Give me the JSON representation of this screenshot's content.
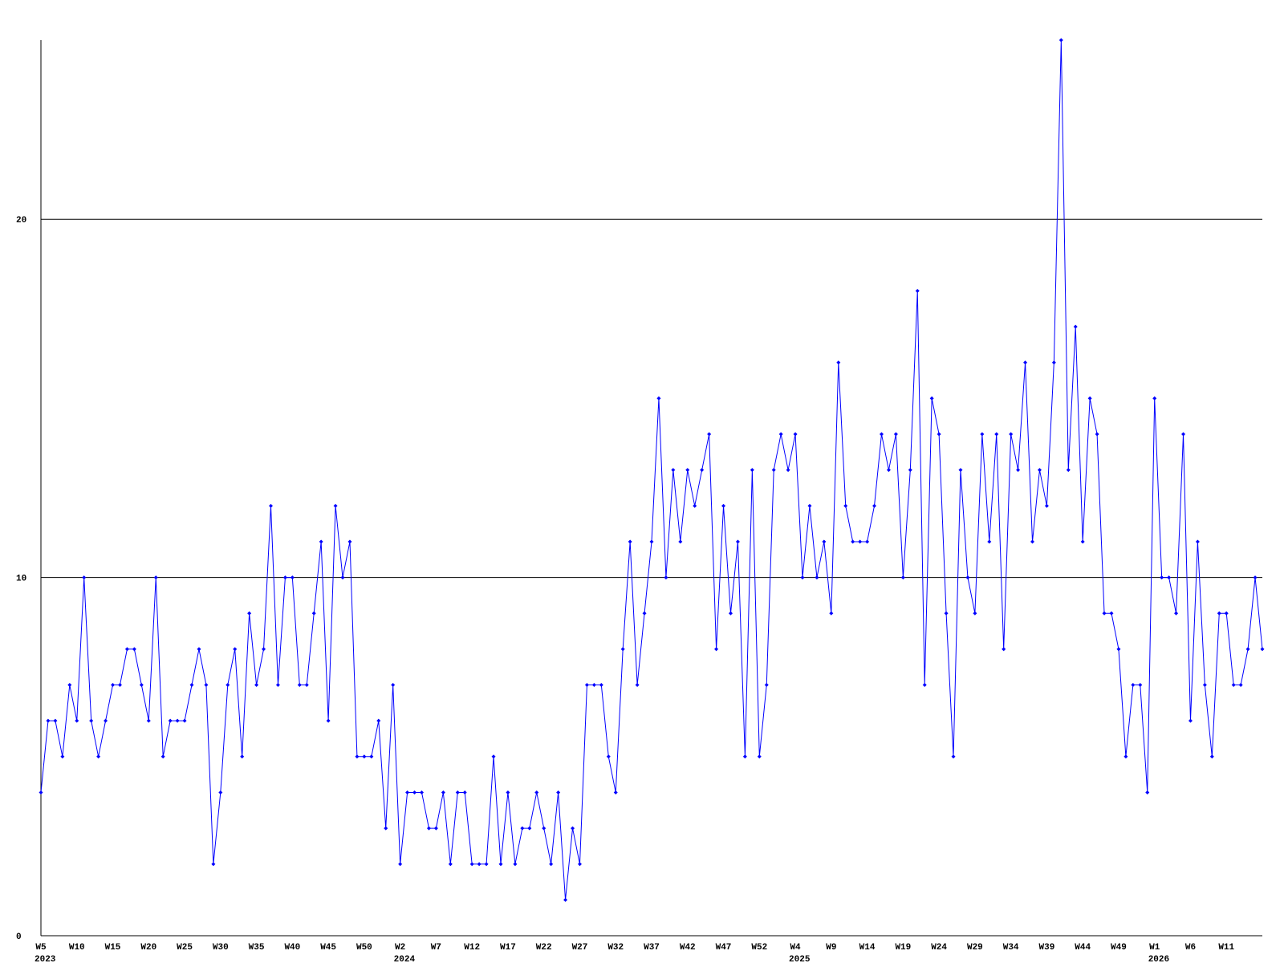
{
  "chart_data": {
    "type": "line",
    "categories": [
      "W5",
      null,
      null,
      null,
      null,
      "W10",
      null,
      null,
      null,
      null,
      "W15",
      null,
      null,
      null,
      null,
      "W20",
      null,
      null,
      null,
      null,
      "W25",
      null,
      null,
      null,
      null,
      "W30",
      null,
      null,
      null,
      null,
      "W35",
      null,
      null,
      null,
      null,
      "W40",
      null,
      null,
      null,
      null,
      "W45",
      null,
      null,
      null,
      null,
      "W50",
      null,
      null,
      null,
      null,
      "W2",
      null,
      null,
      null,
      null,
      "W7",
      null,
      null,
      null,
      null,
      "W12",
      null,
      null,
      null,
      null,
      "W17",
      null,
      null,
      null,
      null,
      "W22",
      null,
      null,
      null,
      null,
      "W27",
      null,
      null,
      null,
      null,
      "W32",
      null,
      null,
      null,
      null,
      "W37",
      null,
      null,
      null,
      null,
      "W42",
      null,
      null,
      null,
      null,
      "W47",
      null,
      null,
      null,
      null,
      "W52",
      null,
      null,
      null,
      null,
      "W4",
      null,
      null,
      null,
      null,
      "W9",
      null,
      null,
      null,
      null,
      "W14",
      null,
      null,
      null,
      null,
      "W19",
      null,
      null,
      null,
      null,
      "W24",
      null,
      null,
      null,
      null,
      "W29",
      null,
      null,
      null,
      null,
      "W34",
      null,
      null,
      null,
      null,
      "W39",
      null,
      null,
      null,
      null,
      "W44",
      null,
      null,
      null,
      null,
      "W49",
      null,
      null,
      null,
      null,
      "W1",
      null,
      null,
      null,
      null,
      "W6",
      null,
      null,
      null,
      null,
      "W11",
      null,
      null,
      null,
      null,
      null
    ],
    "years": [
      "2023",
      "2024",
      "2025",
      "2026"
    ],
    "series": [
      {
        "color": "#0000ff",
        "values": [
          4,
          6,
          6,
          5,
          7,
          6,
          10,
          6,
          5,
          6,
          7,
          7,
          8,
          8,
          7,
          6,
          10,
          5,
          6,
          6,
          6,
          7,
          8,
          7,
          2,
          4,
          7,
          8,
          5,
          9,
          7,
          8,
          12,
          7,
          10,
          10,
          7,
          7,
          9,
          11,
          6,
          12,
          10,
          11,
          5,
          5,
          5,
          6,
          3,
          7,
          2,
          4,
          4,
          4,
          3,
          3,
          4,
          2,
          4,
          4,
          2,
          2,
          2,
          5,
          2,
          4,
          2,
          3,
          3,
          4,
          3,
          2,
          4,
          1,
          3,
          2,
          7,
          7,
          7,
          5,
          4,
          8,
          11,
          7,
          9,
          11,
          15,
          10,
          13,
          11,
          13,
          12,
          13,
          14,
          8,
          12,
          9,
          11,
          5,
          13,
          5,
          7,
          13,
          14,
          13,
          14,
          10,
          12,
          10,
          11,
          9,
          16,
          12,
          11,
          11,
          11,
          12,
          14,
          13,
          14,
          10,
          13,
          18,
          7,
          15,
          14,
          9,
          5,
          13,
          10,
          9,
          14,
          11,
          14,
          8,
          14,
          13,
          16,
          11,
          13,
          12,
          16,
          25,
          13,
          17,
          11,
          15,
          14,
          9,
          9,
          8,
          5,
          7,
          7,
          4,
          15,
          10,
          10,
          9,
          14,
          6,
          11,
          7,
          5,
          9,
          9,
          7,
          7,
          8,
          10,
          8
        ]
      }
    ],
    "ylim": [
      0,
      25
    ],
    "yticks": [
      0,
      10,
      20
    ],
    "grid": true
  }
}
